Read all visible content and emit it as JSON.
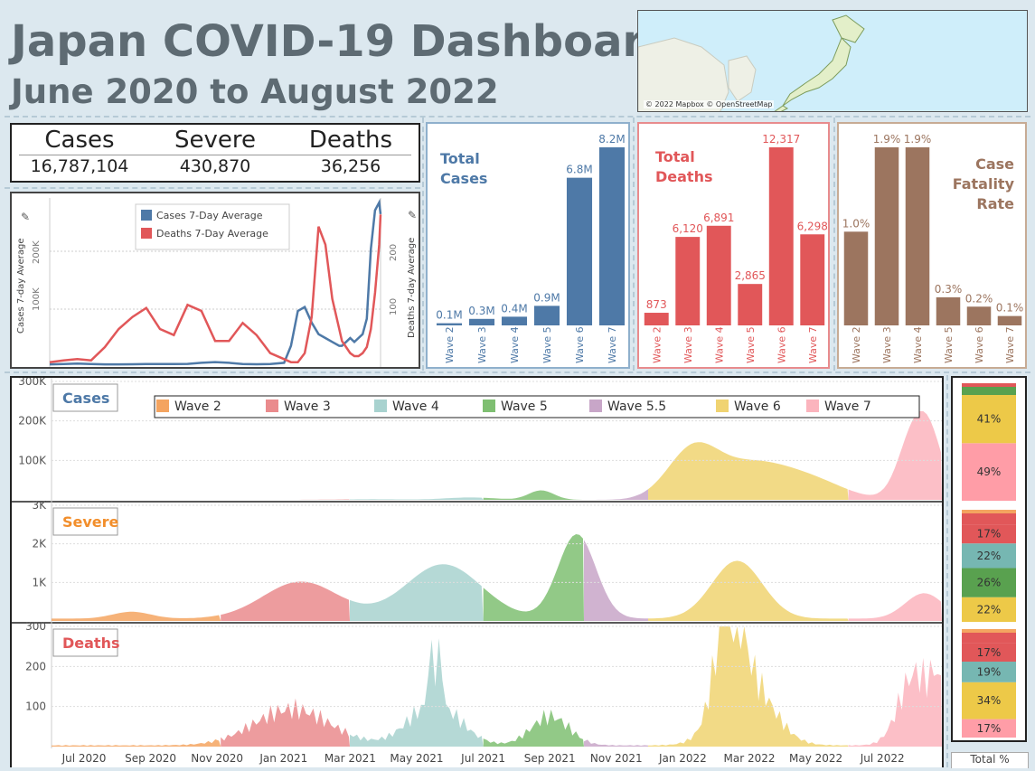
{
  "header": {
    "title": "Japan COVID-19 Dashboard",
    "subtitle": "June 2020 to August 2022"
  },
  "map": {
    "credit": "© 2022 Mapbox © OpenStreetMap"
  },
  "kpis": [
    {
      "label": "Cases",
      "value": "16,787,104"
    },
    {
      "label": "Severe",
      "value": "430,870"
    },
    {
      "label": "Deaths",
      "value": "36,256"
    }
  ],
  "colors": {
    "cases": "#4e79a7",
    "deaths": "#e15759",
    "cfr": "#9c755f",
    "wave2": "#f4a460",
    "wave3": "#ea8b8d",
    "wave4": "#a8d2cf",
    "wave5": "#7fbf72",
    "wave5_5": "#c8a6c8",
    "wave6": "#f0d371",
    "wave7": "#fbb4bd"
  },
  "chart_data": [
    {
      "type": "line",
      "title": "",
      "ylabel": "Cases 7-day Average",
      "ylabel_right": "Deaths 7-day Average",
      "legend": [
        "Cases 7-Day Average",
        "Deaths 7-Day Average"
      ],
      "legend_position": "top-center",
      "y_ticks_left": [
        "100K",
        "200K"
      ],
      "y_ticks_right": [
        "100",
        "200"
      ],
      "series": [
        {
          "name": "Cases 7-Day Average",
          "x": [
            0,
            10,
            20,
            30,
            40,
            50,
            60,
            70,
            80,
            90,
            100,
            110,
            120,
            130,
            140,
            150,
            160,
            170,
            175,
            180,
            185,
            190,
            195,
            200,
            205,
            210,
            212,
            215,
            218,
            221,
            224,
            227,
            230,
            233,
            236,
            239,
            240
          ],
          "values": [
            1000,
            1500,
            2000,
            1500,
            1000,
            1000,
            1200,
            1500,
            1400,
            1500,
            1600,
            3000,
            4000,
            3000,
            1500,
            1200,
            1500,
            3000,
            25000,
            70000,
            75000,
            55000,
            40000,
            35000,
            30000,
            25000,
            25000,
            30000,
            35000,
            30000,
            35000,
            40000,
            60000,
            150000,
            200000,
            210000,
            195000
          ]
        },
        {
          "name": "Deaths 7-Day Average",
          "x": [
            0,
            10,
            20,
            30,
            40,
            50,
            60,
            70,
            80,
            90,
            100,
            110,
            120,
            130,
            140,
            150,
            160,
            170,
            175,
            180,
            185,
            190,
            195,
            200,
            205,
            210,
            212,
            215,
            218,
            221,
            224,
            227,
            230,
            233,
            236,
            239,
            240
          ],
          "values": [
            5,
            8,
            10,
            8,
            30,
            60,
            80,
            95,
            60,
            50,
            100,
            90,
            40,
            40,
            70,
            50,
            20,
            10,
            5,
            5,
            20,
            80,
            230,
            200,
            110,
            60,
            40,
            30,
            20,
            15,
            15,
            20,
            30,
            60,
            120,
            200,
            250
          ]
        }
      ]
    },
    {
      "type": "bar",
      "title": "Total Cases",
      "categories": [
        "Wave 2",
        "Wave 3",
        "Wave 4",
        "Wave 5",
        "Wave 6",
        "Wave 7"
      ],
      "values": [
        0.1,
        0.3,
        0.4,
        0.9,
        6.8,
        8.2
      ],
      "labels": [
        "0.1M",
        "0.3M",
        "0.4M",
        "0.9M",
        "6.8M",
        "8.2M"
      ]
    },
    {
      "type": "bar",
      "title": "Total Deaths",
      "categories": [
        "Wave 2",
        "Wave 3",
        "Wave 4",
        "Wave 5",
        "Wave 6",
        "Wave 7"
      ],
      "values": [
        873,
        6120,
        6891,
        2865,
        12317,
        6298
      ],
      "labels": [
        "873",
        "6,120",
        "6,891",
        "2,865",
        "12,317",
        "6,298"
      ]
    },
    {
      "type": "bar",
      "title": "Case Fatality Rate",
      "categories": [
        "Wave 2",
        "Wave 3",
        "Wave 4",
        "Wave 5",
        "Wave 6",
        "Wave 7"
      ],
      "values": [
        1.0,
        1.9,
        1.9,
        0.3,
        0.2,
        0.1
      ],
      "labels": [
        "1.0%",
        "1.9%",
        "1.9%",
        "0.3%",
        "0.2%",
        "0.1%"
      ]
    },
    {
      "type": "area",
      "legend": [
        "Wave 2",
        "Wave 3",
        "Wave 4",
        "Wave 5",
        "Wave 5.5",
        "Wave 6",
        "Wave 7"
      ],
      "x_ticks": [
        "Jul 2020",
        "Sep 2020",
        "Nov 2020",
        "Jan 2021",
        "Mar 2021",
        "May 2021",
        "Jul 2021",
        "Sep 2021",
        "Nov 2021",
        "Jan 2022",
        "Mar 2022",
        "May 2022",
        "Jul 2022"
      ],
      "panels": [
        {
          "name": "Cases",
          "y_ticks": [
            "100K",
            "200K",
            "300K"
          ],
          "ylim": [
            0,
            300000
          ]
        },
        {
          "name": "Severe",
          "y_ticks": [
            "1K",
            "2K",
            "3K"
          ],
          "ylim": [
            0,
            3000
          ]
        },
        {
          "name": "Deaths",
          "y_ticks": [
            "100",
            "200",
            "300"
          ],
          "ylim": [
            0,
            300
          ]
        }
      ]
    },
    {
      "type": "bar",
      "title": "Total %",
      "stacks": [
        {
          "panel": "Cases",
          "segments": [
            {
              "wave": "Wave 7",
              "value": 49,
              "label": "49%"
            },
            {
              "wave": "Wave 6",
              "value": 41,
              "label": "41%"
            }
          ]
        },
        {
          "panel": "Severe",
          "segments": [
            {
              "wave": "Wave 6",
              "value": 22,
              "label": "22%"
            },
            {
              "wave": "Wave 5",
              "value": 26,
              "label": "26%"
            },
            {
              "wave": "Wave 4",
              "value": 22,
              "label": "22%"
            },
            {
              "wave": "Wave 3",
              "value": 17,
              "label": "17%"
            }
          ]
        },
        {
          "panel": "Deaths",
          "segments": [
            {
              "wave": "Wave 7",
              "value": 17,
              "label": "17%"
            },
            {
              "wave": "Wave 6",
              "value": 34,
              "label": "34%"
            },
            {
              "wave": "Wave 4",
              "value": 19,
              "label": "19%"
            },
            {
              "wave": "Wave 3",
              "value": 17,
              "label": "17%"
            }
          ]
        }
      ]
    }
  ],
  "labels": {
    "total_cases_title": [
      "Total",
      "Cases"
    ],
    "total_deaths_title": [
      "Total",
      "Deaths"
    ],
    "cfr_title": [
      "Case",
      "Fatality",
      "Rate"
    ],
    "total_pct": "Total %"
  }
}
